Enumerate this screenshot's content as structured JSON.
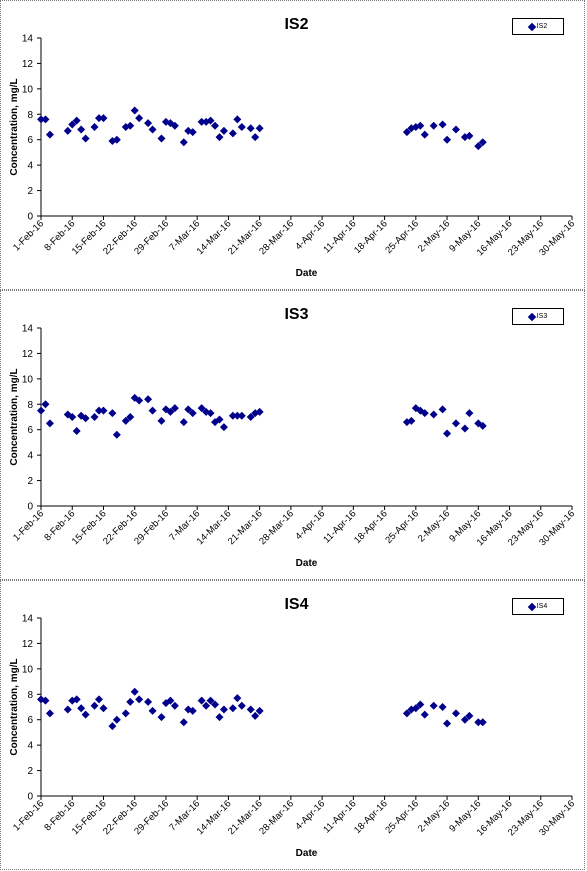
{
  "chart_data": [
    {
      "type": "scatter",
      "title": "IS2",
      "xlabel": "Date",
      "ylabel": "Concentration, mg/L",
      "ylim": [
        0,
        14
      ],
      "yticks": [
        0,
        2,
        4,
        6,
        8,
        10,
        12,
        14
      ],
      "xrange": [
        "2016-02-01",
        "2016-05-30"
      ],
      "xtick_labels": [
        "1-Feb-16",
        "8-Feb-16",
        "15-Feb-16",
        "22-Feb-16",
        "29-Feb-16",
        "7-Mar-16",
        "14-Mar-16",
        "21-Mar-16",
        "28-Mar-16",
        "4-Apr-16",
        "11-Apr-16",
        "18-Apr-16",
        "25-Apr-16",
        "2-May-16",
        "9-May-16",
        "16-May-16",
        "23-May-16",
        "30-May-16"
      ],
      "legend": "top-right",
      "grid": false,
      "series": [
        {
          "name": "IS2",
          "color": "#00008B",
          "marker": "diamond",
          "points": [
            [
              "2016-02-01",
              7.6
            ],
            [
              "2016-02-02",
              7.6
            ],
            [
              "2016-02-03",
              6.4
            ],
            [
              "2016-02-07",
              6.7
            ],
            [
              "2016-02-08",
              7.2
            ],
            [
              "2016-02-09",
              7.5
            ],
            [
              "2016-02-10",
              6.8
            ],
            [
              "2016-02-11",
              6.1
            ],
            [
              "2016-02-13",
              7.0
            ],
            [
              "2016-02-14",
              7.7
            ],
            [
              "2016-02-15",
              7.7
            ],
            [
              "2016-02-17",
              5.9
            ],
            [
              "2016-02-18",
              6.0
            ],
            [
              "2016-02-20",
              7.0
            ],
            [
              "2016-02-21",
              7.1
            ],
            [
              "2016-02-22",
              8.3
            ],
            [
              "2016-02-23",
              7.7
            ],
            [
              "2016-02-25",
              7.3
            ],
            [
              "2016-02-26",
              6.8
            ],
            [
              "2016-02-28",
              6.1
            ],
            [
              "2016-02-29",
              7.4
            ],
            [
              "2016-03-01",
              7.3
            ],
            [
              "2016-03-02",
              7.1
            ],
            [
              "2016-03-04",
              5.8
            ],
            [
              "2016-03-05",
              6.7
            ],
            [
              "2016-03-06",
              6.6
            ],
            [
              "2016-03-08",
              7.4
            ],
            [
              "2016-03-09",
              7.4
            ],
            [
              "2016-03-10",
              7.5
            ],
            [
              "2016-03-11",
              7.1
            ],
            [
              "2016-03-12",
              6.2
            ],
            [
              "2016-03-13",
              6.7
            ],
            [
              "2016-03-15",
              6.5
            ],
            [
              "2016-03-16",
              7.6
            ],
            [
              "2016-03-17",
              7.0
            ],
            [
              "2016-03-19",
              6.9
            ],
            [
              "2016-03-20",
              6.2
            ],
            [
              "2016-03-21",
              6.9
            ],
            [
              "2016-04-23",
              6.6
            ],
            [
              "2016-04-24",
              6.9
            ],
            [
              "2016-04-25",
              7.0
            ],
            [
              "2016-04-26",
              7.1
            ],
            [
              "2016-04-27",
              6.4
            ],
            [
              "2016-04-29",
              7.1
            ],
            [
              "2016-05-01",
              7.2
            ],
            [
              "2016-05-02",
              6.0
            ],
            [
              "2016-05-04",
              6.8
            ],
            [
              "2016-05-06",
              6.2
            ],
            [
              "2016-05-07",
              6.3
            ],
            [
              "2016-05-09",
              5.5
            ],
            [
              "2016-05-10",
              5.8
            ]
          ]
        }
      ]
    },
    {
      "type": "scatter",
      "title": "IS3",
      "xlabel": "Date",
      "ylabel": "Concentration, mg/L",
      "ylim": [
        0,
        14
      ],
      "yticks": [
        0,
        2,
        4,
        6,
        8,
        10,
        12,
        14
      ],
      "xrange": [
        "2016-02-01",
        "2016-05-30"
      ],
      "xtick_labels": [
        "1-Feb-16",
        "8-Feb-16",
        "15-Feb-16",
        "22-Feb-16",
        "29-Feb-16",
        "7-Mar-16",
        "14-Mar-16",
        "21-Mar-16",
        "28-Mar-16",
        "4-Apr-16",
        "11-Apr-16",
        "18-Apr-16",
        "25-Apr-16",
        "2-May-16",
        "9-May-16",
        "16-May-16",
        "23-May-16",
        "30-May-16"
      ],
      "legend": "top-right",
      "grid": false,
      "series": [
        {
          "name": "IS3",
          "color": "#00008B",
          "marker": "diamond",
          "points": [
            [
              "2016-02-01",
              7.5
            ],
            [
              "2016-02-02",
              8.0
            ],
            [
              "2016-02-03",
              6.5
            ],
            [
              "2016-02-07",
              7.2
            ],
            [
              "2016-02-08",
              7.0
            ],
            [
              "2016-02-09",
              5.9
            ],
            [
              "2016-02-10",
              7.1
            ],
            [
              "2016-02-11",
              6.9
            ],
            [
              "2016-02-13",
              7.0
            ],
            [
              "2016-02-14",
              7.5
            ],
            [
              "2016-02-15",
              7.5
            ],
            [
              "2016-02-17",
              7.3
            ],
            [
              "2016-02-18",
              5.6
            ],
            [
              "2016-02-20",
              6.7
            ],
            [
              "2016-02-21",
              7.0
            ],
            [
              "2016-02-22",
              8.5
            ],
            [
              "2016-02-23",
              8.3
            ],
            [
              "2016-02-25",
              8.4
            ],
            [
              "2016-02-26",
              7.5
            ],
            [
              "2016-02-28",
              6.7
            ],
            [
              "2016-02-29",
              7.6
            ],
            [
              "2016-03-01",
              7.4
            ],
            [
              "2016-03-02",
              7.7
            ],
            [
              "2016-03-04",
              6.6
            ],
            [
              "2016-03-05",
              7.6
            ],
            [
              "2016-03-06",
              7.3
            ],
            [
              "2016-03-08",
              7.7
            ],
            [
              "2016-03-09",
              7.4
            ],
            [
              "2016-03-10",
              7.3
            ],
            [
              "2016-03-11",
              6.6
            ],
            [
              "2016-03-12",
              6.8
            ],
            [
              "2016-03-13",
              6.2
            ],
            [
              "2016-03-15",
              7.1
            ],
            [
              "2016-03-16",
              7.1
            ],
            [
              "2016-03-17",
              7.1
            ],
            [
              "2016-03-19",
              7.0
            ],
            [
              "2016-03-20",
              7.3
            ],
            [
              "2016-03-21",
              7.4
            ],
            [
              "2016-04-23",
              6.6
            ],
            [
              "2016-04-24",
              6.7
            ],
            [
              "2016-04-25",
              7.7
            ],
            [
              "2016-04-26",
              7.5
            ],
            [
              "2016-04-27",
              7.3
            ],
            [
              "2016-04-29",
              7.2
            ],
            [
              "2016-05-01",
              7.6
            ],
            [
              "2016-05-02",
              5.7
            ],
            [
              "2016-05-04",
              6.5
            ],
            [
              "2016-05-06",
              6.1
            ],
            [
              "2016-05-07",
              7.3
            ],
            [
              "2016-05-09",
              6.5
            ],
            [
              "2016-05-10",
              6.3
            ]
          ]
        }
      ]
    },
    {
      "type": "scatter",
      "title": "IS4",
      "xlabel": "Date",
      "ylabel": "Concentration, mg/L",
      "ylim": [
        0,
        14
      ],
      "yticks": [
        0,
        2,
        4,
        6,
        8,
        10,
        12,
        14
      ],
      "xrange": [
        "2016-02-01",
        "2016-05-30"
      ],
      "xtick_labels": [
        "1-Feb-16",
        "8-Feb-16",
        "15-Feb-16",
        "22-Feb-16",
        "29-Feb-16",
        "7-Mar-16",
        "14-Mar-16",
        "21-Mar-16",
        "28-Mar-16",
        "4-Apr-16",
        "11-Apr-16",
        "18-Apr-16",
        "25-Apr-16",
        "2-May-16",
        "9-May-16",
        "16-May-16",
        "23-May-16",
        "30-May-16"
      ],
      "legend": "top-right",
      "grid": false,
      "series": [
        {
          "name": "IS4",
          "color": "#00008B",
          "marker": "diamond",
          "points": [
            [
              "2016-02-01",
              7.6
            ],
            [
              "2016-02-02",
              7.5
            ],
            [
              "2016-02-03",
              6.5
            ],
            [
              "2016-02-07",
              6.8
            ],
            [
              "2016-02-08",
              7.5
            ],
            [
              "2016-02-09",
              7.6
            ],
            [
              "2016-02-10",
              6.9
            ],
            [
              "2016-02-11",
              6.4
            ],
            [
              "2016-02-13",
              7.1
            ],
            [
              "2016-02-14",
              7.6
            ],
            [
              "2016-02-15",
              6.9
            ],
            [
              "2016-02-17",
              5.5
            ],
            [
              "2016-02-18",
              6.0
            ],
            [
              "2016-02-20",
              6.5
            ],
            [
              "2016-02-21",
              7.4
            ],
            [
              "2016-02-22",
              8.2
            ],
            [
              "2016-02-23",
              7.6
            ],
            [
              "2016-02-25",
              7.4
            ],
            [
              "2016-02-26",
              6.7
            ],
            [
              "2016-02-28",
              6.2
            ],
            [
              "2016-02-29",
              7.3
            ],
            [
              "2016-03-01",
              7.5
            ],
            [
              "2016-03-02",
              7.1
            ],
            [
              "2016-03-04",
              5.8
            ],
            [
              "2016-03-05",
              6.8
            ],
            [
              "2016-03-06",
              6.7
            ],
            [
              "2016-03-08",
              7.5
            ],
            [
              "2016-03-09",
              7.1
            ],
            [
              "2016-03-10",
              7.5
            ],
            [
              "2016-03-11",
              7.2
            ],
            [
              "2016-03-12",
              6.2
            ],
            [
              "2016-03-13",
              6.8
            ],
            [
              "2016-03-15",
              6.9
            ],
            [
              "2016-03-16",
              7.7
            ],
            [
              "2016-03-17",
              7.1
            ],
            [
              "2016-03-19",
              6.8
            ],
            [
              "2016-03-20",
              6.3
            ],
            [
              "2016-03-21",
              6.7
            ],
            [
              "2016-04-23",
              6.5
            ],
            [
              "2016-04-24",
              6.8
            ],
            [
              "2016-04-25",
              6.9
            ],
            [
              "2016-04-26",
              7.2
            ],
            [
              "2016-04-27",
              6.4
            ],
            [
              "2016-04-29",
              7.1
            ],
            [
              "2016-05-01",
              7.0
            ],
            [
              "2016-05-02",
              5.7
            ],
            [
              "2016-05-04",
              6.5
            ],
            [
              "2016-05-06",
              6.0
            ],
            [
              "2016-05-07",
              6.3
            ],
            [
              "2016-05-09",
              5.8
            ],
            [
              "2016-05-10",
              5.8
            ]
          ]
        }
      ]
    }
  ]
}
